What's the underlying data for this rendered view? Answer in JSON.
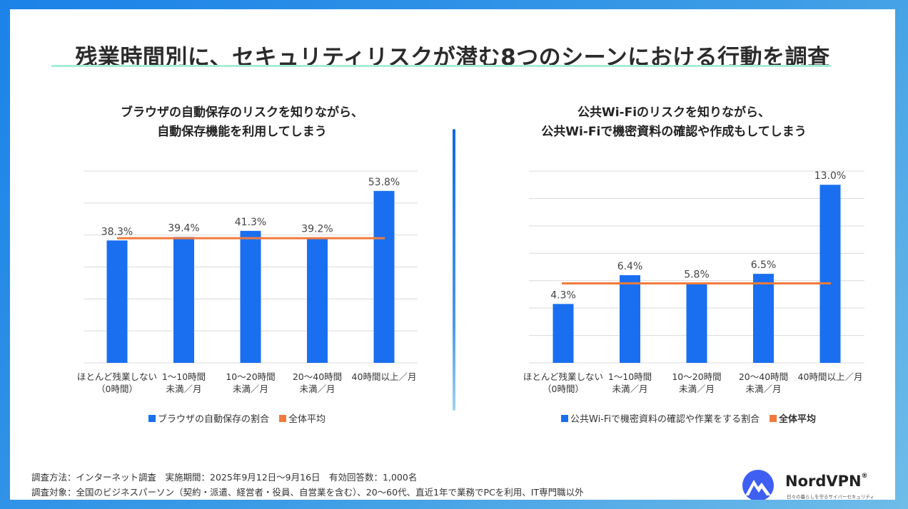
{
  "page": {
    "title": "残業時間別に、セキュリティリスクが潜む8つのシーンにおける行動を調査",
    "colors": {
      "bar": "#1a6ff0",
      "average_line": "#f07a3c",
      "accent_rule": "#a6ecd6"
    }
  },
  "chart_data": [
    {
      "type": "bar",
      "title_lines": [
        "ブラウザの自動保存のリスクを知りながら、",
        "自動保存機能を利用してしまう"
      ],
      "categories": [
        [
          "ほとんど残業しない",
          "（0時間）"
        ],
        [
          "1～10時間",
          "未満／月"
        ],
        [
          "10～20時間",
          "未満／月"
        ],
        [
          "20～40時間",
          "未満／月"
        ],
        [
          "40時間以上／月",
          ""
        ]
      ],
      "values": [
        38.3,
        39.4,
        41.3,
        39.2,
        53.8
      ],
      "value_labels": [
        "38.3%",
        "39.4%",
        "41.3%",
        "39.2%",
        "53.8%"
      ],
      "average": 39.0,
      "ylim": [
        0,
        60
      ],
      "grid_step": 10,
      "legend": [
        "ブラウザの自動保存の割合",
        "全体平均"
      ]
    },
    {
      "type": "bar",
      "title_lines": [
        "公共Wi-Fiのリスクを知りながら、",
        "公共Wi-Fiで機密資料の確認や作成もしてしまう"
      ],
      "categories": [
        [
          "ほとんど残業しない",
          "（0時間）"
        ],
        [
          "1～10時間",
          "未満／月"
        ],
        [
          "10～20時間",
          "未満／月"
        ],
        [
          "20～40時間",
          "未満／月"
        ],
        [
          "40時間以上／月",
          ""
        ]
      ],
      "values": [
        4.3,
        6.4,
        5.8,
        6.5,
        13.0
      ],
      "value_labels": [
        "4.3%",
        "6.4%",
        "5.8%",
        "6.5%",
        "13.0%"
      ],
      "average": 5.8,
      "ylim": [
        0,
        14
      ],
      "grid_step": 2,
      "legend": [
        "公共Wi-Fiで機密資料の確認や作業をする割合",
        "全体平均"
      ]
    }
  ],
  "footer": {
    "line1": "調査方法：インターネット調査　実施期間：2025年9月12日～9月16日　有効回答数：1,000名",
    "line2": "調査対象：全国のビジネスパーソン（契約・派遣、経営者・役員、自営業を含む）、20～60代、直近1年で業務でPCを利用、IT専門職以外"
  },
  "logo": {
    "name": "NordVPN",
    "reg": "®",
    "tagline": "日々の暮らしを守るサイバーセキュリティ",
    "icon": "nordvpn-mountain-icon"
  }
}
